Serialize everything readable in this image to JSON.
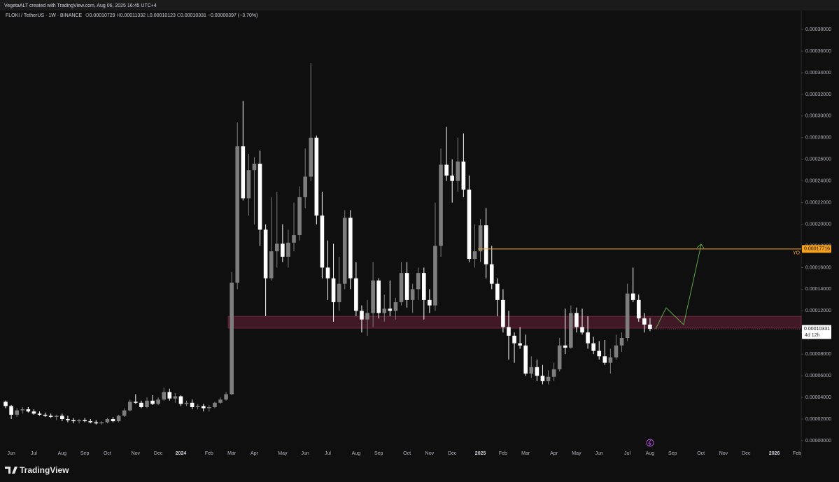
{
  "chart_data": {
    "type": "candlestick",
    "creator": "VegetaALT created with TradingView.com, Aug 06, 2025 16:45 UTC+4",
    "title": "FLOKI / TetherUS · 1W · BINANCE",
    "ohlc_labels": [
      "O",
      "H",
      "L",
      "C"
    ],
    "change": "−0.00000397 (−3.70%)",
    "countdown": "4d 12h",
    "brand": "TradingView",
    "up_color": "#7e7e7e",
    "down_color": "#ffffff",
    "level": {
      "value": 0.00017716,
      "label": "YO",
      "color": "#f7a21b"
    },
    "zone": {
      "low": 0.000104,
      "high": 0.000115,
      "color": "#f23c7a"
    },
    "categories": [
      null,
      "Jun",
      null,
      null,
      null,
      "Jul",
      null,
      null,
      null,
      null,
      "Aug",
      null,
      null,
      null,
      "Sep",
      null,
      null,
      null,
      "Oct",
      null,
      null,
      null,
      null,
      "Nov",
      null,
      null,
      null,
      "Dec",
      null,
      null,
      null,
      "2024",
      null,
      null,
      null,
      null,
      "Feb",
      null,
      null,
      null,
      "Mar",
      null,
      null,
      null,
      "Apr",
      null,
      null,
      null,
      null,
      "May",
      null,
      null,
      null,
      "Jun",
      null,
      null,
      null,
      "Jul",
      null,
      null,
      null,
      null,
      "Aug",
      null,
      null,
      null,
      "Sep",
      null,
      null,
      null,
      null,
      "Oct",
      null,
      null,
      null,
      "Nov",
      null,
      null,
      null,
      "Dec",
      null,
      null,
      null,
      null,
      "2025",
      null,
      null,
      null,
      "Feb",
      null,
      null,
      null,
      "Mar",
      null,
      null,
      null,
      null,
      "Apr",
      null,
      null,
      null,
      "May",
      null,
      null,
      null,
      "Jun",
      null,
      null,
      null,
      null,
      "Jul",
      null,
      null,
      null,
      "Aug",
      null,
      null,
      null,
      "Sep",
      null,
      null,
      null,
      null,
      "Oct",
      null,
      null,
      null,
      "Nov",
      null,
      null,
      null,
      "Dec",
      null,
      null,
      null,
      null,
      "2026",
      null,
      null,
      null,
      "Feb"
    ],
    "open": [
      3.6e-05,
      3.2e-05,
      2.4e-05,
      2.8e-05,
      2.9e-05,
      2.7e-05,
      2.5e-05,
      2.4e-05,
      2.3e-05,
      2.2e-05,
      2.3e-05,
      2e-05,
      1.9e-05,
      1.8e-05,
      1.9e-05,
      1.8e-05,
      1.7e-05,
      1.6e-05,
      1.7e-05,
      2e-05,
      1.8e-05,
      2.3e-05,
      2.8e-05,
      3.6e-05,
      3.5e-05,
      3.1e-05,
      3.7e-05,
      3.4e-05,
      3.8e-05,
      4.5e-05,
      3.9e-05,
      4.1e-05,
      3.4e-05,
      3.5e-05,
      3.1e-05,
      3.2e-05,
      3e-05,
      3.1e-05,
      3.5e-05,
      3.8e-05,
      4.3e-05,
      0.000146,
      0.000272,
      0.000224,
      0.00025,
      0.000256,
      0.000195,
      0.00015,
      0.000175,
      0.000182,
      0.00017,
      0.000183,
      0.00019,
      0.000225,
      0.000244,
      0.00028,
      0.000208,
      0.00016,
      0.00015,
      0.000128,
      0.000145,
      0.000206,
      0.00015,
      0.00012,
      0.000112,
      0.000118,
      0.000148,
      0.000118,
      0.000122,
      0.00012,
      0.000128,
      0.000155,
      0.00013,
      0.00014,
      0.000155,
      0.00013,
      0.000125,
      0.00018,
      0.000255,
      0.000245,
      0.00024,
      0.000258,
      0.000232,
      0.000168,
      0.000175,
      0.000199,
      0.000163,
      0.000145,
      0.00013,
      0.000105,
      9.7e-05,
      9e-05,
      8.8e-05,
      6.2e-05,
      6.8e-05,
      6e-05,
      5.5e-05,
      5.9e-05,
      6.6e-05,
      8.8e-05,
      8.6e-05,
      0.000118,
      0.000105,
      0.0001,
      9e-05,
      8.3e-05,
      7.8e-05,
      7.2e-05,
      7.7e-05,
      8.8e-05,
      9.5e-05,
      0.000136,
      0.00013,
      0.000113,
      0.00010729,
      null,
      null,
      null,
      null,
      null,
      null,
      null,
      null,
      null,
      null,
      null,
      null,
      null,
      null,
      null,
      null,
      null,
      null,
      null,
      null,
      null,
      null,
      null,
      null,
      null,
      null
    ],
    "high": [
      3.7e-05,
      3.3e-05,
      3e-05,
      3.1e-05,
      3.1e-05,
      2.9e-05,
      2.7e-05,
      2.6e-05,
      2.5e-05,
      2.4e-05,
      2.5e-05,
      2.3e-05,
      2.1e-05,
      2e-05,
      2.1e-05,
      2e-05,
      1.9e-05,
      1.8e-05,
      2.1e-05,
      2.2e-05,
      2.4e-05,
      3e-05,
      3.8e-05,
      4.3e-05,
      3.7e-05,
      4e-05,
      4.2e-05,
      4e-05,
      4.9e-05,
      4.8e-05,
      4.4e-05,
      4.2e-05,
      3.7e-05,
      3.8e-05,
      3.4e-05,
      3.4e-05,
      3.3e-05,
      3.6e-05,
      4e-05,
      4.5e-05,
      0.000156,
      0.000294,
      0.000314,
      0.000265,
      0.000262,
      0.000268,
      0.0002,
      0.000225,
      0.00023,
      0.0002,
      0.000195,
      0.00022,
      0.000235,
      0.00027,
      0.000349,
      0.000282,
      0.00023,
      0.000185,
      0.000182,
      0.00017,
      0.000213,
      0.000213,
      0.000165,
      0.000125,
      0.00013,
      0.000165,
      0.00015,
      0.000135,
      0.000148,
      0.000132,
      0.000165,
      0.000165,
      0.000145,
      0.00016,
      0.00016,
      0.00014,
      0.00022,
      0.00027,
      0.00029,
      0.00026,
      0.00028,
      0.000284,
      0.000245,
      0.0002,
      0.000205,
      0.000215,
      0.00018,
      0.00015,
      0.00014,
      0.00012,
      0.0001,
      0.000105,
      9.8e-05,
      7.8e-05,
      7.5e-05,
      7e-05,
      6.5e-05,
      7.2e-05,
      9.5e-05,
      0.000122,
      0.000125,
      0.000123,
      0.000122,
      0.000115,
      9.6e-05,
      9.2e-05,
      9.3e-05,
      8.5e-05,
      9.8e-05,
      0.0001,
      0.000145,
      0.00016,
      0.000135,
      0.000118,
      0.00011332,
      null,
      null,
      null,
      null,
      null,
      null,
      null,
      null,
      null,
      null,
      null,
      null,
      null,
      null,
      null,
      null,
      null,
      null,
      null,
      null,
      null,
      null,
      null,
      null,
      null,
      null
    ],
    "low": [
      3e-05,
      2e-05,
      2.2e-05,
      2.5e-05,
      2.6e-05,
      2.4e-05,
      2.3e-05,
      2.2e-05,
      2.1e-05,
      1.9e-05,
      1.8e-05,
      1.7e-05,
      1.6e-05,
      1.6e-05,
      1.7e-05,
      1.6e-05,
      1.5e-05,
      1.5e-05,
      1.6e-05,
      1.7e-05,
      1.7e-05,
      2.2e-05,
      2.7e-05,
      3.4e-05,
      3e-05,
      3e-05,
      3.3e-05,
      3.3e-05,
      3.7e-05,
      3.7e-05,
      3.5e-05,
      3.2e-05,
      3.2e-05,
      2.9e-05,
      2.9e-05,
      2.7e-05,
      2.7e-05,
      3e-05,
      3.4e-05,
      3.7e-05,
      4.2e-05,
      0.00014,
      0.000222,
      0.000208,
      0.0002,
      0.00018,
      0.000115,
      0.000148,
      0.00016,
      0.000165,
      0.00016,
      0.000175,
      0.000185,
      0.000215,
      0.00024,
      0.0002,
      0.00015,
      0.00013,
      0.00011,
      0.00012,
      0.00014,
      0.00014,
      0.000115,
      0.0001,
      9.7e-05,
      0.000105,
      0.000113,
      0.00011,
      0.000115,
      0.000112,
      0.000125,
      0.000123,
      0.000118,
      0.00013,
      0.000112,
      0.000118,
      0.00012,
      0.00017,
      0.00024,
      0.00022,
      0.00023,
      0.000225,
      0.000165,
      0.00016,
      0.000165,
      0.00015,
      0.00014,
      0.000115,
      0.0001,
      7.5e-05,
      7.2e-05,
      8.5e-05,
      6e-05,
      5.8e-05,
      5.5e-05,
      5.2e-05,
      5.2e-05,
      5.5e-05,
      6.4e-05,
      8e-05,
      8.5e-05,
      0.0001,
      9.8e-05,
      8.5e-05,
      8e-05,
      7.5e-05,
      7e-05,
      6.2e-05,
      7.5e-05,
      8.2e-05,
      9.2e-05,
      0.000128,
      0.00011,
      0.0001,
      0.00010123,
      null,
      null,
      null,
      null,
      null,
      null,
      null,
      null,
      null,
      null,
      null,
      null,
      null,
      null,
      null,
      null,
      null,
      null,
      null,
      null,
      null,
      null,
      null,
      null,
      null,
      null
    ],
    "close": [
      3.2e-05,
      2.4e-05,
      2.8e-05,
      2.9e-05,
      2.7e-05,
      2.5e-05,
      2.4e-05,
      2.3e-05,
      2.2e-05,
      2.3e-05,
      2e-05,
      1.9e-05,
      1.8e-05,
      1.9e-05,
      1.8e-05,
      1.7e-05,
      1.6e-05,
      1.7e-05,
      2e-05,
      1.8e-05,
      2.3e-05,
      2.8e-05,
      3.6e-05,
      3.5e-05,
      3.1e-05,
      3.7e-05,
      3.4e-05,
      3.8e-05,
      4.5e-05,
      3.9e-05,
      4.1e-05,
      3.4e-05,
      3.5e-05,
      3.1e-05,
      3.2e-05,
      3e-05,
      3.1e-05,
      3.5e-05,
      3.8e-05,
      4.3e-05,
      0.000146,
      0.000272,
      0.000224,
      0.00025,
      0.000256,
      0.000195,
      0.00015,
      0.000175,
      0.000182,
      0.00017,
      0.000183,
      0.00019,
      0.000225,
      0.000244,
      0.00028,
      0.000208,
      0.00016,
      0.00015,
      0.000128,
      0.000145,
      0.000206,
      0.00015,
      0.00012,
      0.000112,
      0.000118,
      0.000148,
      0.000118,
      0.000122,
      0.00012,
      0.000128,
      0.000155,
      0.00013,
      0.00014,
      0.000155,
      0.00013,
      0.000125,
      0.00018,
      0.000255,
      0.000245,
      0.00024,
      0.000258,
      0.000232,
      0.000168,
      0.000175,
      0.000199,
      0.000163,
      0.000145,
      0.00013,
      0.000105,
      9.7e-05,
      9e-05,
      8.8e-05,
      6.2e-05,
      6.8e-05,
      6e-05,
      5.5e-05,
      5.9e-05,
      6.6e-05,
      8.8e-05,
      8.6e-05,
      0.000118,
      0.000105,
      0.0001,
      9e-05,
      8.3e-05,
      7.8e-05,
      7.2e-05,
      7.7e-05,
      8.8e-05,
      9.5e-05,
      0.000136,
      0.00013,
      0.000113,
      0.00010729,
      0.00010331,
      null,
      null,
      null,
      null,
      null,
      null,
      null,
      null,
      null,
      null,
      null,
      null,
      null,
      null,
      null,
      null,
      null,
      null,
      null,
      null,
      null,
      null,
      null,
      null,
      null,
      null
    ],
    "ylim": [
      -5.2e-06,
      0.0003846
    ],
    "yticks": [
      {
        "value": 0,
        "label": "0.00000000"
      },
      {
        "value": 2e-05,
        "label": "0.00002000"
      },
      {
        "value": 4e-05,
        "label": "0.00004000"
      },
      {
        "value": 6e-05,
        "label": "0.00006000"
      },
      {
        "value": 8e-05,
        "label": "0.00008000"
      },
      {
        "value": 0.0001,
        "label": "0.00010000"
      },
      {
        "value": 0.00012,
        "label": "0.00012000"
      },
      {
        "value": 0.00014,
        "label": "0.00014000"
      },
      {
        "value": 0.00016,
        "label": "0.00016000"
      },
      {
        "value": 0.00018,
        "label": "0.00018000"
      },
      {
        "value": 0.0002,
        "label": "0.00020000"
      },
      {
        "value": 0.00022,
        "label": "0.00022000"
      },
      {
        "value": 0.00024,
        "label": "0.00024000"
      },
      {
        "value": 0.00026,
        "label": "0.00026000"
      },
      {
        "value": 0.00028,
        "label": "0.00028000"
      },
      {
        "value": 0.0003,
        "label": "0.00030000"
      },
      {
        "value": 0.00032,
        "label": "0.00032000"
      },
      {
        "value": 0.00034,
        "label": "0.00034000"
      },
      {
        "value": 0.00036,
        "label": "0.00036000"
      },
      {
        "value": 0.00038,
        "label": "0.00038000"
      }
    ]
  }
}
